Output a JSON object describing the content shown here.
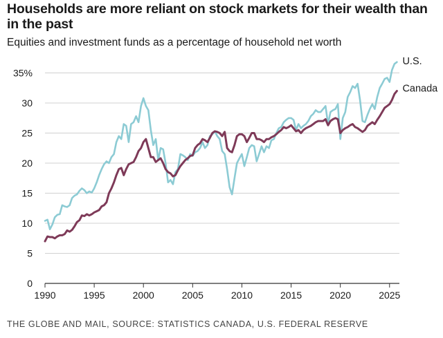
{
  "chart_data": {
    "type": "line",
    "title": "Households are more reliant on stock markets for their wealth than in the past",
    "subtitle": "Equities and investment funds as a percentage of household net worth",
    "source": "THE GLOBE AND MAIL, SOURCE: STATISTICS CANADA, U.S. FEDERAL RESERVE",
    "xlim": [
      1990,
      2026
    ],
    "ylim": [
      0,
      35
    ],
    "xticks": [
      1990,
      1995,
      2000,
      2005,
      2010,
      2015,
      2020,
      2025
    ],
    "xtick_labels": [
      "1990",
      "1995",
      "2000",
      "2005",
      "2010",
      "2015",
      "2020",
      "2025"
    ],
    "yticks": [
      0,
      5,
      10,
      15,
      20,
      25,
      30,
      35
    ],
    "ytick_labels": [
      "0",
      "5",
      "10",
      "15",
      "20",
      "25",
      "30",
      "35%"
    ],
    "grid": "horizontal",
    "series": [
      {
        "name": "U.S.",
        "color": "#8ccbd4",
        "points": [
          [
            1990.0,
            10.4
          ],
          [
            1990.25,
            10.6
          ],
          [
            1990.5,
            9.0
          ],
          [
            1990.75,
            9.8
          ],
          [
            1991.0,
            11.0
          ],
          [
            1991.25,
            11.4
          ],
          [
            1991.5,
            11.5
          ],
          [
            1991.75,
            13.0
          ],
          [
            1992.0,
            12.8
          ],
          [
            1992.25,
            12.7
          ],
          [
            1992.5,
            13.0
          ],
          [
            1992.75,
            14.2
          ],
          [
            1993.0,
            14.6
          ],
          [
            1993.25,
            14.8
          ],
          [
            1993.5,
            15.4
          ],
          [
            1993.75,
            15.8
          ],
          [
            1994.0,
            15.5
          ],
          [
            1994.25,
            15.0
          ],
          [
            1994.5,
            15.3
          ],
          [
            1994.75,
            15.1
          ],
          [
            1995.0,
            15.8
          ],
          [
            1995.25,
            16.8
          ],
          [
            1995.5,
            18.0
          ],
          [
            1995.75,
            19.0
          ],
          [
            1996.0,
            19.8
          ],
          [
            1996.25,
            20.3
          ],
          [
            1996.5,
            20.0
          ],
          [
            1996.75,
            21.0
          ],
          [
            1997.0,
            21.5
          ],
          [
            1997.25,
            23.5
          ],
          [
            1997.5,
            24.5
          ],
          [
            1997.75,
            24.0
          ],
          [
            1998.0,
            26.5
          ],
          [
            1998.25,
            26.2
          ],
          [
            1998.5,
            23.5
          ],
          [
            1998.75,
            26.5
          ],
          [
            1999.0,
            26.8
          ],
          [
            1999.25,
            27.8
          ],
          [
            1999.5,
            26.8
          ],
          [
            1999.75,
            29.5
          ],
          [
            2000.0,
            30.8
          ],
          [
            2000.25,
            29.5
          ],
          [
            2000.5,
            28.8
          ],
          [
            2000.75,
            25.5
          ],
          [
            2001.0,
            23.0
          ],
          [
            2001.25,
            24.0
          ],
          [
            2001.5,
            20.5
          ],
          [
            2001.75,
            22.5
          ],
          [
            2002.0,
            22.3
          ],
          [
            2002.25,
            20.0
          ],
          [
            2002.5,
            16.8
          ],
          [
            2002.75,
            17.2
          ],
          [
            2003.0,
            16.5
          ],
          [
            2003.25,
            18.5
          ],
          [
            2003.5,
            19.0
          ],
          [
            2003.75,
            21.5
          ],
          [
            2004.0,
            21.3
          ],
          [
            2004.25,
            21.0
          ],
          [
            2004.5,
            20.5
          ],
          [
            2004.75,
            21.5
          ],
          [
            2005.0,
            21.2
          ],
          [
            2005.25,
            21.8
          ],
          [
            2005.5,
            22.0
          ],
          [
            2005.75,
            22.5
          ],
          [
            2006.0,
            23.5
          ],
          [
            2006.25,
            22.5
          ],
          [
            2006.5,
            23.0
          ],
          [
            2006.75,
            24.5
          ],
          [
            2007.0,
            24.8
          ],
          [
            2007.25,
            25.3
          ],
          [
            2007.5,
            24.5
          ],
          [
            2007.75,
            24.0
          ],
          [
            2008.0,
            22.0
          ],
          [
            2008.25,
            21.5
          ],
          [
            2008.5,
            19.0
          ],
          [
            2008.75,
            16.0
          ],
          [
            2009.0,
            14.8
          ],
          [
            2009.25,
            17.5
          ],
          [
            2009.5,
            20.0
          ],
          [
            2009.75,
            20.8
          ],
          [
            2010.0,
            21.5
          ],
          [
            2010.25,
            19.5
          ],
          [
            2010.5,
            21.0
          ],
          [
            2010.75,
            22.5
          ],
          [
            2011.0,
            23.0
          ],
          [
            2011.25,
            22.8
          ],
          [
            2011.5,
            20.3
          ],
          [
            2011.75,
            21.5
          ],
          [
            2012.0,
            22.8
          ],
          [
            2012.25,
            21.8
          ],
          [
            2012.5,
            22.8
          ],
          [
            2012.75,
            22.5
          ],
          [
            2013.0,
            23.8
          ],
          [
            2013.25,
            24.0
          ],
          [
            2013.5,
            25.0
          ],
          [
            2013.75,
            25.8
          ],
          [
            2014.0,
            26.0
          ],
          [
            2014.25,
            26.8
          ],
          [
            2014.5,
            27.2
          ],
          [
            2014.75,
            27.5
          ],
          [
            2015.0,
            27.5
          ],
          [
            2015.25,
            27.2
          ],
          [
            2015.5,
            25.5
          ],
          [
            2015.75,
            26.5
          ],
          [
            2016.0,
            25.8
          ],
          [
            2016.25,
            26.2
          ],
          [
            2016.5,
            26.5
          ],
          [
            2016.75,
            27.0
          ],
          [
            2017.0,
            27.8
          ],
          [
            2017.25,
            28.2
          ],
          [
            2017.5,
            28.8
          ],
          [
            2017.75,
            28.5
          ],
          [
            2018.0,
            28.5
          ],
          [
            2018.25,
            29.0
          ],
          [
            2018.5,
            29.5
          ],
          [
            2018.75,
            26.5
          ],
          [
            2019.0,
            28.5
          ],
          [
            2019.25,
            28.8
          ],
          [
            2019.5,
            29.0
          ],
          [
            2019.75,
            29.8
          ],
          [
            2020.0,
            24.0
          ],
          [
            2020.25,
            27.5
          ],
          [
            2020.5,
            28.5
          ],
          [
            2020.75,
            31.0
          ],
          [
            2021.0,
            31.8
          ],
          [
            2021.25,
            32.8
          ],
          [
            2021.5,
            32.5
          ],
          [
            2021.75,
            33.2
          ],
          [
            2022.0,
            30.5
          ],
          [
            2022.25,
            27.0
          ],
          [
            2022.5,
            26.8
          ],
          [
            2022.75,
            28.0
          ],
          [
            2023.0,
            29.0
          ],
          [
            2023.25,
            29.8
          ],
          [
            2023.5,
            29.0
          ],
          [
            2023.75,
            31.0
          ],
          [
            2024.0,
            32.5
          ],
          [
            2024.25,
            33.2
          ],
          [
            2024.5,
            34.0
          ],
          [
            2024.75,
            34.2
          ],
          [
            2025.0,
            33.5
          ],
          [
            2025.25,
            35.5
          ],
          [
            2025.5,
            36.5
          ],
          [
            2025.75,
            36.8
          ]
        ]
      },
      {
        "name": "Canada",
        "color": "#7e3a58",
        "points": [
          [
            1990.0,
            7.0
          ],
          [
            1990.25,
            7.8
          ],
          [
            1990.5,
            7.7
          ],
          [
            1990.75,
            7.7
          ],
          [
            1991.0,
            7.5
          ],
          [
            1991.25,
            7.8
          ],
          [
            1991.5,
            8.0
          ],
          [
            1991.75,
            8.0
          ],
          [
            1992.0,
            8.2
          ],
          [
            1992.25,
            8.8
          ],
          [
            1992.5,
            8.6
          ],
          [
            1992.75,
            8.9
          ],
          [
            1993.0,
            9.5
          ],
          [
            1993.25,
            10.2
          ],
          [
            1993.5,
            10.5
          ],
          [
            1993.75,
            11.3
          ],
          [
            1994.0,
            11.2
          ],
          [
            1994.25,
            11.5
          ],
          [
            1994.5,
            11.3
          ],
          [
            1994.75,
            11.5
          ],
          [
            1995.0,
            11.8
          ],
          [
            1995.25,
            12.0
          ],
          [
            1995.5,
            12.2
          ],
          [
            1995.75,
            12.8
          ],
          [
            1996.0,
            13.0
          ],
          [
            1996.25,
            13.5
          ],
          [
            1996.5,
            15.0
          ],
          [
            1996.75,
            15.8
          ],
          [
            1997.0,
            16.8
          ],
          [
            1997.25,
            18.0
          ],
          [
            1997.5,
            19.0
          ],
          [
            1997.75,
            19.2
          ],
          [
            1998.0,
            18.0
          ],
          [
            1998.25,
            19.0
          ],
          [
            1998.5,
            19.8
          ],
          [
            1998.75,
            20.0
          ],
          [
            1999.0,
            20.2
          ],
          [
            1999.25,
            21.0
          ],
          [
            1999.5,
            22.0
          ],
          [
            1999.75,
            22.5
          ],
          [
            2000.0,
            23.5
          ],
          [
            2000.25,
            24.0
          ],
          [
            2000.5,
            22.5
          ],
          [
            2000.75,
            21.0
          ],
          [
            2001.0,
            21.0
          ],
          [
            2001.25,
            20.2
          ],
          [
            2001.5,
            20.5
          ],
          [
            2001.75,
            20.8
          ],
          [
            2002.0,
            20.0
          ],
          [
            2002.25,
            19.0
          ],
          [
            2002.5,
            18.5
          ],
          [
            2002.75,
            18.3
          ],
          [
            2003.0,
            17.8
          ],
          [
            2003.25,
            18.0
          ],
          [
            2003.5,
            18.8
          ],
          [
            2003.75,
            19.5
          ],
          [
            2004.0,
            20.0
          ],
          [
            2004.25,
            20.5
          ],
          [
            2004.5,
            20.8
          ],
          [
            2004.75,
            21.2
          ],
          [
            2005.0,
            21.3
          ],
          [
            2005.25,
            22.5
          ],
          [
            2005.5,
            23.0
          ],
          [
            2005.75,
            23.3
          ],
          [
            2006.0,
            24.0
          ],
          [
            2006.25,
            23.8
          ],
          [
            2006.5,
            23.5
          ],
          [
            2006.75,
            24.2
          ],
          [
            2007.0,
            25.0
          ],
          [
            2007.25,
            25.3
          ],
          [
            2007.5,
            25.2
          ],
          [
            2007.75,
            25.0
          ],
          [
            2008.0,
            24.5
          ],
          [
            2008.25,
            25.2
          ],
          [
            2008.5,
            22.5
          ],
          [
            2008.75,
            22.0
          ],
          [
            2009.0,
            21.8
          ],
          [
            2009.25,
            23.0
          ],
          [
            2009.5,
            24.5
          ],
          [
            2009.75,
            24.8
          ],
          [
            2010.0,
            24.8
          ],
          [
            2010.25,
            24.5
          ],
          [
            2010.5,
            23.5
          ],
          [
            2010.75,
            24.2
          ],
          [
            2011.0,
            25.0
          ],
          [
            2011.25,
            25.0
          ],
          [
            2011.5,
            24.0
          ],
          [
            2011.75,
            24.0
          ],
          [
            2012.0,
            23.8
          ],
          [
            2012.25,
            23.5
          ],
          [
            2012.5,
            24.0
          ],
          [
            2012.75,
            24.0
          ],
          [
            2013.0,
            24.3
          ],
          [
            2013.25,
            24.5
          ],
          [
            2013.5,
            24.8
          ],
          [
            2013.75,
            25.2
          ],
          [
            2014.0,
            25.5
          ],
          [
            2014.25,
            26.0
          ],
          [
            2014.5,
            25.8
          ],
          [
            2014.75,
            26.0
          ],
          [
            2015.0,
            26.3
          ],
          [
            2015.25,
            25.8
          ],
          [
            2015.5,
            25.3
          ],
          [
            2015.75,
            25.5
          ],
          [
            2016.0,
            25.0
          ],
          [
            2016.25,
            25.5
          ],
          [
            2016.5,
            25.8
          ],
          [
            2016.75,
            26.0
          ],
          [
            2017.0,
            26.2
          ],
          [
            2017.25,
            26.5
          ],
          [
            2017.5,
            26.8
          ],
          [
            2017.75,
            27.0
          ],
          [
            2018.0,
            27.0
          ],
          [
            2018.25,
            27.0
          ],
          [
            2018.5,
            27.3
          ],
          [
            2018.75,
            26.3
          ],
          [
            2019.0,
            27.0
          ],
          [
            2019.25,
            27.3
          ],
          [
            2019.5,
            27.5
          ],
          [
            2019.75,
            27.3
          ],
          [
            2020.0,
            25.0
          ],
          [
            2020.25,
            25.5
          ],
          [
            2020.5,
            25.8
          ],
          [
            2020.75,
            26.0
          ],
          [
            2021.0,
            26.3
          ],
          [
            2021.25,
            26.5
          ],
          [
            2021.5,
            26.0
          ],
          [
            2021.75,
            25.8
          ],
          [
            2022.0,
            25.5
          ],
          [
            2022.25,
            25.2
          ],
          [
            2022.5,
            25.5
          ],
          [
            2022.75,
            26.2
          ],
          [
            2023.0,
            26.5
          ],
          [
            2023.25,
            26.8
          ],
          [
            2023.5,
            26.5
          ],
          [
            2023.75,
            27.2
          ],
          [
            2024.0,
            27.8
          ],
          [
            2024.25,
            28.5
          ],
          [
            2024.5,
            29.2
          ],
          [
            2024.75,
            29.5
          ],
          [
            2025.0,
            29.8
          ],
          [
            2025.25,
            30.5
          ],
          [
            2025.5,
            31.5
          ],
          [
            2025.75,
            32.0
          ]
        ]
      }
    ]
  }
}
